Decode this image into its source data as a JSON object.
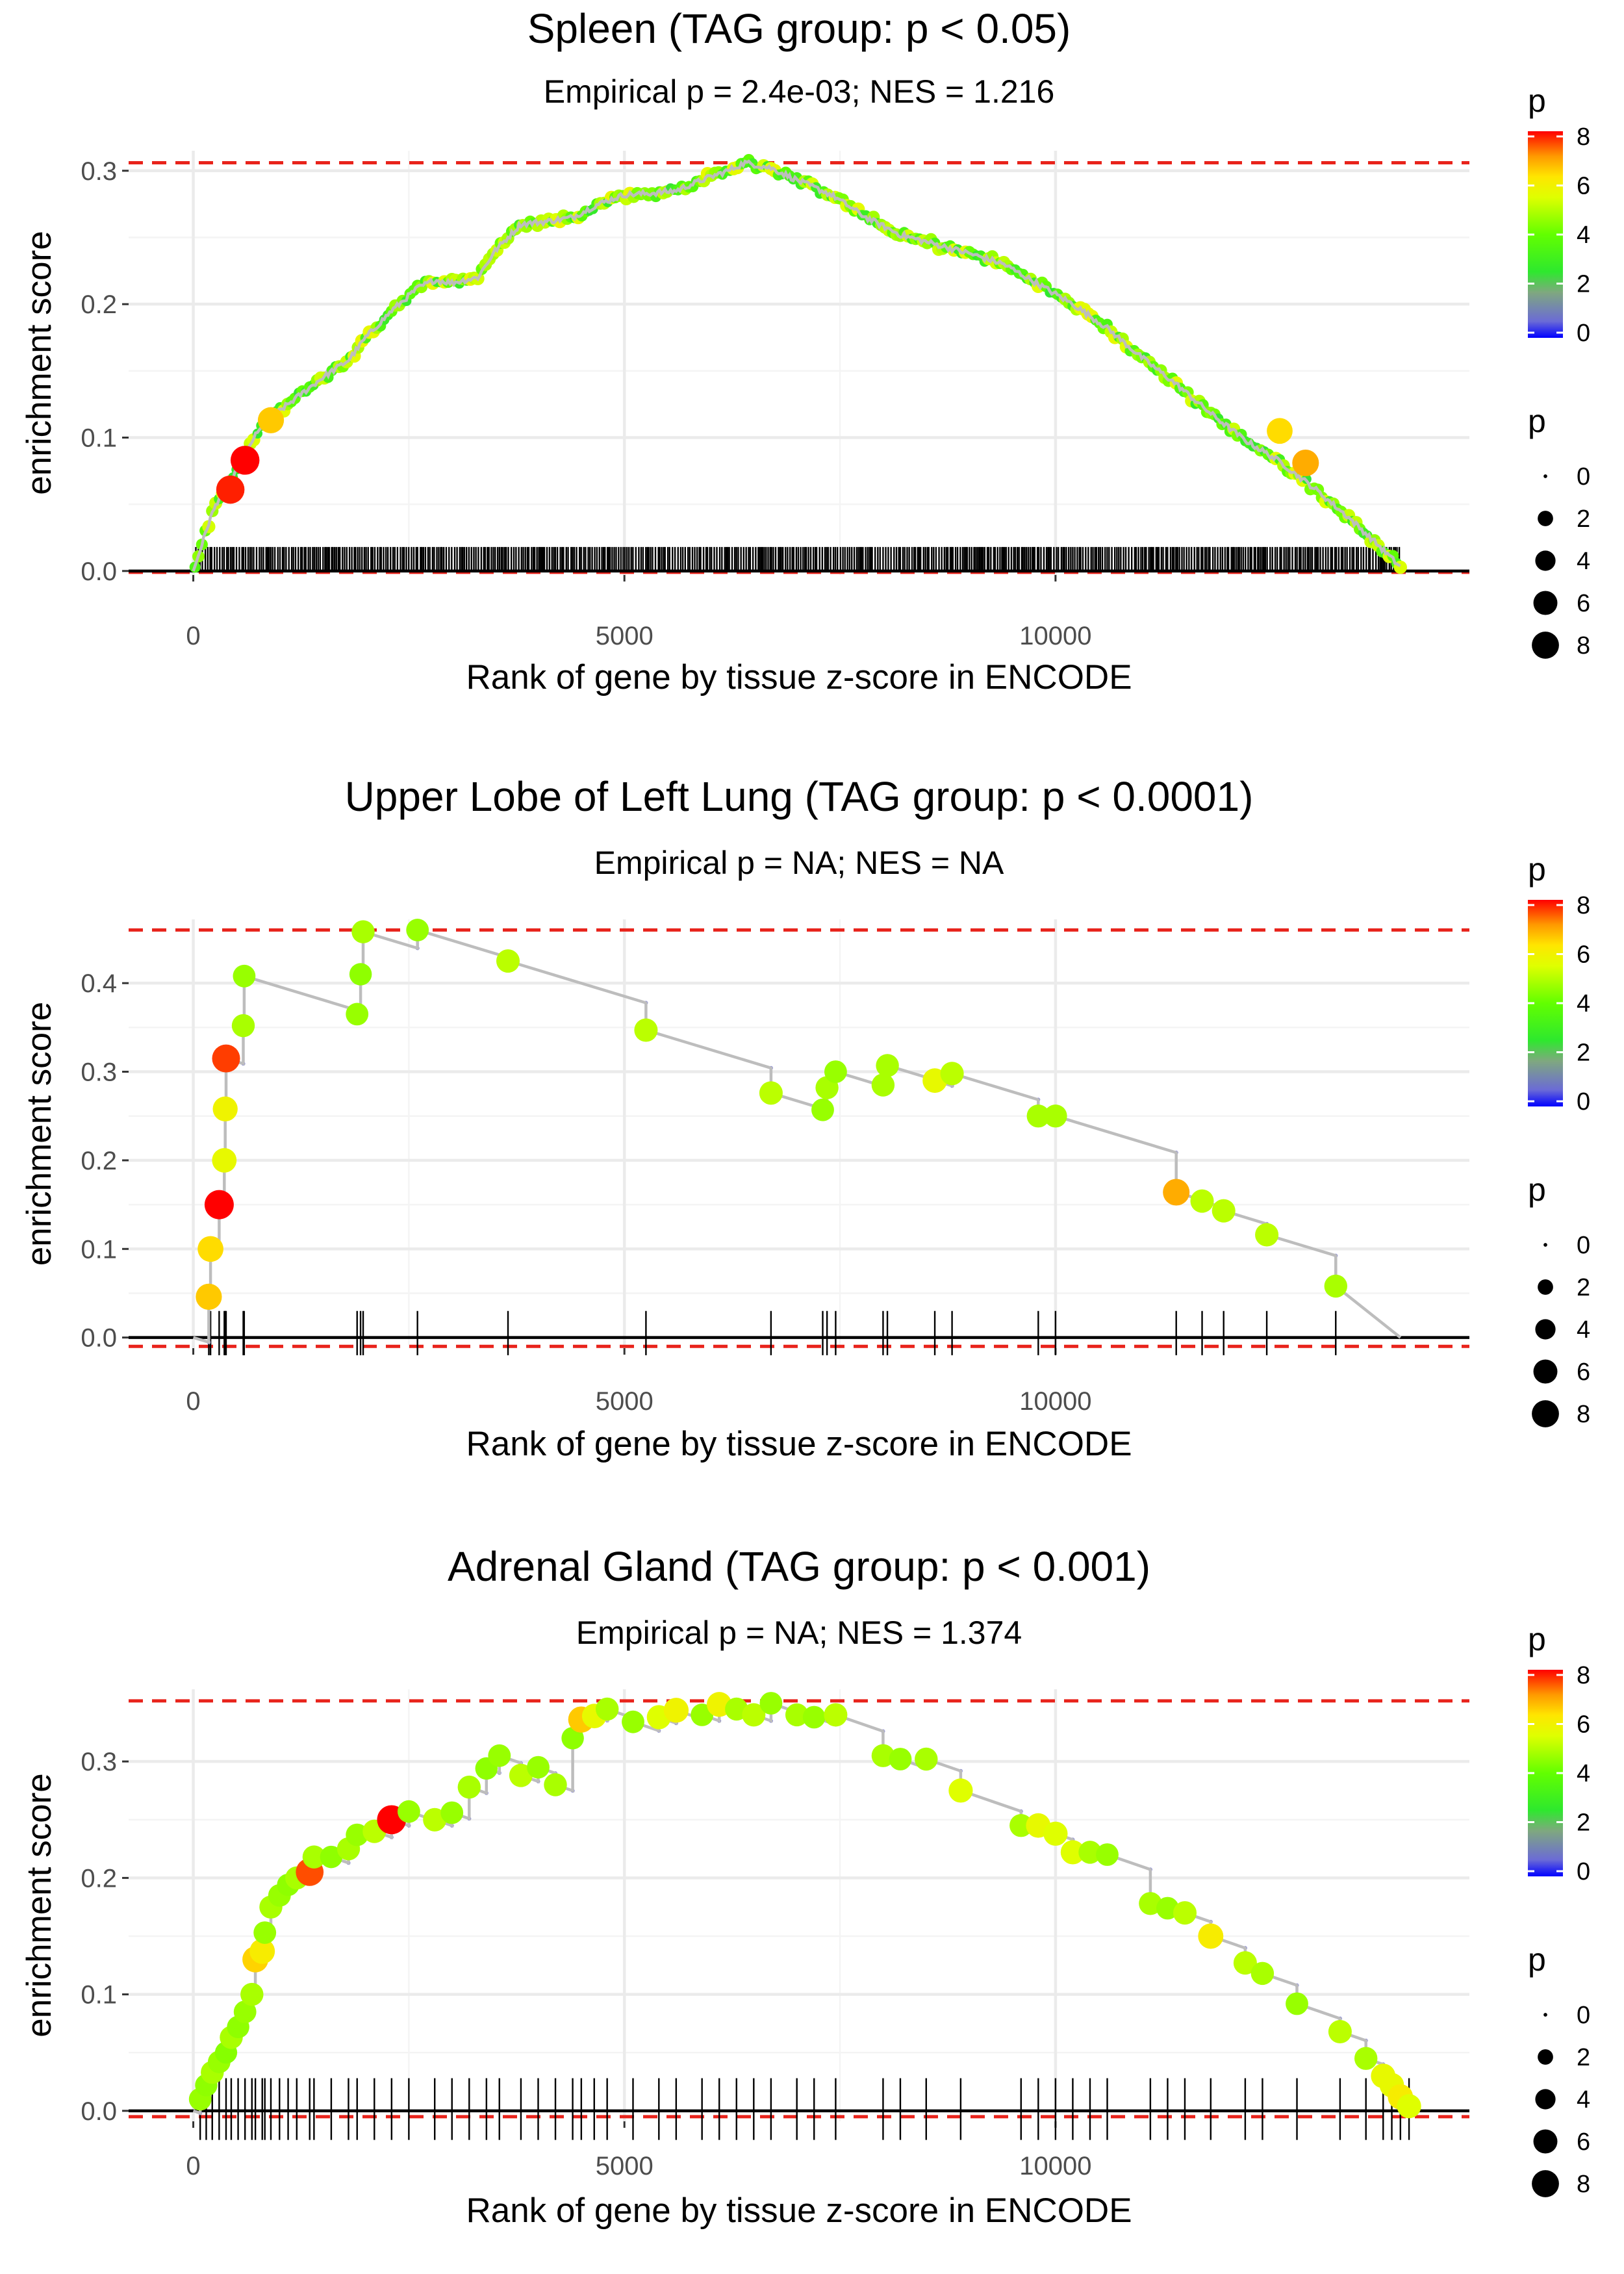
{
  "legend": {
    "color_title": "p",
    "size_title": "p",
    "color_ticks": [
      "0",
      "2",
      "4",
      "6",
      "8"
    ],
    "size_ticks": [
      "0",
      "2",
      "4",
      "6",
      "8"
    ]
  },
  "colors": {
    "p0": "#0000ff",
    "p1": "#7b7bd9",
    "p2": "#4fc96b",
    "p3": "#2ee82e",
    "p4": "#62ff00",
    "p5": "#c6ff00",
    "p6": "#ffe600",
    "p7": "#ffb300",
    "p8": "#ff2200",
    "red_line": "#e8231b"
  },
  "chart_data": [
    {
      "type": "line",
      "title": "Spleen (TAG group: p < 0.05)",
      "subtitle": "Empirical p = 2.4e-03; NES = 1.216",
      "xlabel": "Rank of gene by tissue z-score in ENCODE",
      "ylabel": "enrichment score",
      "xlim": [
        -750,
        14800
      ],
      "ylim": [
        -0.003,
        0.315
      ],
      "xticks": [
        0,
        5000,
        10000
      ],
      "xtick_labels": [
        "0",
        "5000",
        "10000"
      ],
      "yticks": [
        0.0,
        0.1,
        0.2,
        0.3
      ],
      "ytick_labels": [
        "0.0",
        "0.1",
        "0.2",
        "0.3"
      ],
      "max_es": 0.306,
      "min_es": -0.001,
      "rug_min": 0.0,
      "rug_max": 0.018,
      "dense": true,
      "curve": [
        [
          0,
          0
        ],
        [
          100,
          0.02
        ],
        [
          200,
          0.04
        ],
        [
          300,
          0.055
        ],
        [
          400,
          0.06
        ],
        [
          500,
          0.075
        ],
        [
          600,
          0.085
        ],
        [
          700,
          0.1
        ],
        [
          900,
          0.115
        ],
        [
          1200,
          0.13
        ],
        [
          1500,
          0.145
        ],
        [
          1800,
          0.158
        ],
        [
          2000,
          0.175
        ],
        [
          2300,
          0.195
        ],
        [
          2600,
          0.212
        ],
        [
          2800,
          0.218
        ],
        [
          3000,
          0.216
        ],
        [
          3300,
          0.22
        ],
        [
          3500,
          0.24
        ],
        [
          3800,
          0.26
        ],
        [
          4100,
          0.262
        ],
        [
          4400,
          0.265
        ],
        [
          4700,
          0.275
        ],
        [
          5000,
          0.282
        ],
        [
          5300,
          0.283
        ],
        [
          5600,
          0.285
        ],
        [
          5900,
          0.293
        ],
        [
          6200,
          0.3
        ],
        [
          6400,
          0.306
        ],
        [
          6700,
          0.302
        ],
        [
          7000,
          0.293
        ],
        [
          7400,
          0.282
        ],
        [
          7800,
          0.265
        ],
        [
          8200,
          0.252
        ],
        [
          8600,
          0.245
        ],
        [
          9000,
          0.238
        ],
        [
          9400,
          0.23
        ],
        [
          9800,
          0.215
        ],
        [
          10200,
          0.2
        ],
        [
          10600,
          0.182
        ],
        [
          11000,
          0.16
        ],
        [
          11400,
          0.14
        ],
        [
          11800,
          0.118
        ],
        [
          12200,
          0.098
        ],
        [
          12600,
          0.082
        ],
        [
          13000,
          0.062
        ],
        [
          13400,
          0.04
        ],
        [
          13700,
          0.022
        ],
        [
          14000,
          0.003
        ]
      ],
      "highlights": [
        {
          "x": 430,
          "y": 0.061,
          "p": 7.8
        },
        {
          "x": 600,
          "y": 0.083,
          "p": 8.2
        },
        {
          "x": 900,
          "y": 0.113,
          "p": 6.5
        },
        {
          "x": 12600,
          "y": 0.105,
          "p": 6.3
        },
        {
          "x": 12900,
          "y": 0.081,
          "p": 6.8
        }
      ]
    },
    {
      "type": "line",
      "title": "Upper Lobe of Left Lung (TAG group: p < 0.0001)",
      "subtitle": "Empirical p = NA; NES = NA",
      "xlabel": "Rank of gene by tissue z-score in ENCODE",
      "ylabel": "enrichment score",
      "xlim": [
        -750,
        14800
      ],
      "ylim": [
        -0.012,
        0.472
      ],
      "xticks": [
        0,
        5000,
        10000
      ],
      "xtick_labels": [
        "0",
        "5000",
        "10000"
      ],
      "yticks": [
        0.0,
        0.1,
        0.2,
        0.3,
        0.4
      ],
      "ytick_labels": [
        "0.0",
        "0.1",
        "0.2",
        "0.3",
        "0.4"
      ],
      "max_es": 0.46,
      "min_es": -0.01,
      "rug_min": -0.02,
      "rug_max": 0.03,
      "dense": false,
      "events": [
        {
          "x": 180,
          "y": 0.046,
          "p": 6.5
        },
        {
          "x": 200,
          "y": 0.1,
          "p": 6.3
        },
        {
          "x": 300,
          "y": 0.15,
          "p": 8.4
        },
        {
          "x": 360,
          "y": 0.2,
          "p": 5.6
        },
        {
          "x": 370,
          "y": 0.258,
          "p": 5.8
        },
        {
          "x": 380,
          "y": 0.315,
          "p": 7.6
        },
        {
          "x": 580,
          "y": 0.352,
          "p": 4.8
        },
        {
          "x": 590,
          "y": 0.408,
          "p": 4.6
        },
        {
          "x": 1900,
          "y": 0.365,
          "p": 4.6
        },
        {
          "x": 1940,
          "y": 0.41,
          "p": 4.5
        },
        {
          "x": 1970,
          "y": 0.458,
          "p": 4.8
        },
        {
          "x": 2600,
          "y": 0.46,
          "p": 4.6
        },
        {
          "x": 3650,
          "y": 0.425,
          "p": 5.0
        },
        {
          "x": 5250,
          "y": 0.347,
          "p": 5.0
        },
        {
          "x": 6700,
          "y": 0.276,
          "p": 5.0
        },
        {
          "x": 7300,
          "y": 0.257,
          "p": 4.6
        },
        {
          "x": 7350,
          "y": 0.282,
          "p": 4.8
        },
        {
          "x": 7450,
          "y": 0.3,
          "p": 4.6
        },
        {
          "x": 8000,
          "y": 0.285,
          "p": 4.8
        },
        {
          "x": 8050,
          "y": 0.307,
          "p": 4.8
        },
        {
          "x": 8600,
          "y": 0.29,
          "p": 5.6
        },
        {
          "x": 8800,
          "y": 0.298,
          "p": 5.0
        },
        {
          "x": 9800,
          "y": 0.25,
          "p": 4.8
        },
        {
          "x": 10000,
          "y": 0.25,
          "p": 4.8
        },
        {
          "x": 11400,
          "y": 0.164,
          "p": 6.8
        },
        {
          "x": 11700,
          "y": 0.154,
          "p": 5.0
        },
        {
          "x": 11950,
          "y": 0.143,
          "p": 5.0
        },
        {
          "x": 12450,
          "y": 0.116,
          "p": 5.0
        },
        {
          "x": 13250,
          "y": 0.058,
          "p": 4.8
        }
      ],
      "end_x": 14000
    },
    {
      "type": "line",
      "title": "Adrenal Gland (TAG group: p < 0.001)",
      "subtitle": "Empirical p = NA; NES = 1.374",
      "xlabel": "Rank of gene by tissue z-score in ENCODE",
      "ylabel": "enrichment score",
      "xlim": [
        -750,
        14800
      ],
      "ylim": [
        -0.009,
        0.362
      ],
      "xticks": [
        0,
        5000,
        10000
      ],
      "xtick_labels": [
        "0",
        "5000",
        "10000"
      ],
      "yticks": [
        0.0,
        0.1,
        0.2,
        0.3
      ],
      "ytick_labels": [
        "0.0",
        "0.1",
        "0.2",
        "0.3"
      ],
      "max_es": 0.352,
      "min_es": -0.005,
      "rug_min": -0.025,
      "rug_max": 0.028,
      "dense": false,
      "events": [
        {
          "x": 80,
          "y": 0.01,
          "p": 4.6
        },
        {
          "x": 150,
          "y": 0.022,
          "p": 4.5
        },
        {
          "x": 220,
          "y": 0.033,
          "p": 4.8
        },
        {
          "x": 300,
          "y": 0.042,
          "p": 4.6
        },
        {
          "x": 380,
          "y": 0.05,
          "p": 4.4
        },
        {
          "x": 440,
          "y": 0.063,
          "p": 4.8
        },
        {
          "x": 520,
          "y": 0.072,
          "p": 4.5
        },
        {
          "x": 600,
          "y": 0.085,
          "p": 4.6
        },
        {
          "x": 680,
          "y": 0.1,
          "p": 4.8
        },
        {
          "x": 720,
          "y": 0.13,
          "p": 6.4
        },
        {
          "x": 800,
          "y": 0.137,
          "p": 6.0
        },
        {
          "x": 830,
          "y": 0.153,
          "p": 4.6
        },
        {
          "x": 900,
          "y": 0.175,
          "p": 4.8
        },
        {
          "x": 1000,
          "y": 0.185,
          "p": 4.6
        },
        {
          "x": 1100,
          "y": 0.194,
          "p": 4.5
        },
        {
          "x": 1200,
          "y": 0.2,
          "p": 4.8
        },
        {
          "x": 1350,
          "y": 0.205,
          "p": 7.5
        },
        {
          "x": 1400,
          "y": 0.218,
          "p": 4.8
        },
        {
          "x": 1600,
          "y": 0.218,
          "p": 4.5
        },
        {
          "x": 1800,
          "y": 0.225,
          "p": 4.8
        },
        {
          "x": 1900,
          "y": 0.237,
          "p": 4.6
        },
        {
          "x": 2100,
          "y": 0.24,
          "p": 5.0
        },
        {
          "x": 2300,
          "y": 0.25,
          "p": 8.3
        },
        {
          "x": 2500,
          "y": 0.257,
          "p": 4.6
        },
        {
          "x": 2800,
          "y": 0.25,
          "p": 5.0
        },
        {
          "x": 3000,
          "y": 0.256,
          "p": 4.6
        },
        {
          "x": 3200,
          "y": 0.278,
          "p": 4.8
        },
        {
          "x": 3400,
          "y": 0.294,
          "p": 4.5
        },
        {
          "x": 3550,
          "y": 0.305,
          "p": 4.6
        },
        {
          "x": 3800,
          "y": 0.288,
          "p": 5.0
        },
        {
          "x": 4000,
          "y": 0.295,
          "p": 4.6
        },
        {
          "x": 4200,
          "y": 0.28,
          "p": 4.8
        },
        {
          "x": 4400,
          "y": 0.32,
          "p": 4.5
        },
        {
          "x": 4500,
          "y": 0.336,
          "p": 6.5
        },
        {
          "x": 4650,
          "y": 0.339,
          "p": 5.6
        },
        {
          "x": 4800,
          "y": 0.345,
          "p": 4.8
        },
        {
          "x": 5100,
          "y": 0.334,
          "p": 4.6
        },
        {
          "x": 5400,
          "y": 0.338,
          "p": 5.4
        },
        {
          "x": 5600,
          "y": 0.344,
          "p": 5.8
        },
        {
          "x": 5900,
          "y": 0.34,
          "p": 4.6
        },
        {
          "x": 6100,
          "y": 0.349,
          "p": 5.8
        },
        {
          "x": 6300,
          "y": 0.345,
          "p": 4.8
        },
        {
          "x": 6500,
          "y": 0.34,
          "p": 5.0
        },
        {
          "x": 6700,
          "y": 0.35,
          "p": 4.6
        },
        {
          "x": 7000,
          "y": 0.34,
          "p": 4.8
        },
        {
          "x": 7200,
          "y": 0.338,
          "p": 4.6
        },
        {
          "x": 7450,
          "y": 0.34,
          "p": 5.0
        },
        {
          "x": 8000,
          "y": 0.305,
          "p": 4.8
        },
        {
          "x": 8200,
          "y": 0.302,
          "p": 4.6
        },
        {
          "x": 8500,
          "y": 0.302,
          "p": 4.8
        },
        {
          "x": 8900,
          "y": 0.275,
          "p": 5.4
        },
        {
          "x": 9600,
          "y": 0.245,
          "p": 4.8
        },
        {
          "x": 9800,
          "y": 0.245,
          "p": 5.6
        },
        {
          "x": 10000,
          "y": 0.238,
          "p": 5.4
        },
        {
          "x": 10200,
          "y": 0.222,
          "p": 5.4
        },
        {
          "x": 10400,
          "y": 0.222,
          "p": 4.8
        },
        {
          "x": 10600,
          "y": 0.22,
          "p": 4.6
        },
        {
          "x": 11100,
          "y": 0.178,
          "p": 4.8
        },
        {
          "x": 11300,
          "y": 0.174,
          "p": 4.6
        },
        {
          "x": 11500,
          "y": 0.17,
          "p": 5.0
        },
        {
          "x": 11800,
          "y": 0.15,
          "p": 6.0
        },
        {
          "x": 12200,
          "y": 0.127,
          "p": 5.0
        },
        {
          "x": 12400,
          "y": 0.118,
          "p": 4.8
        },
        {
          "x": 12800,
          "y": 0.092,
          "p": 4.6
        },
        {
          "x": 13300,
          "y": 0.068,
          "p": 5.0
        },
        {
          "x": 13600,
          "y": 0.045,
          "p": 4.8
        },
        {
          "x": 13800,
          "y": 0.03,
          "p": 5.6
        },
        {
          "x": 13900,
          "y": 0.022,
          "p": 5.6
        },
        {
          "x": 14000,
          "y": 0.012,
          "p": 6.0
        },
        {
          "x": 14100,
          "y": 0.004,
          "p": 5.4
        }
      ],
      "end_x": 14100
    }
  ]
}
